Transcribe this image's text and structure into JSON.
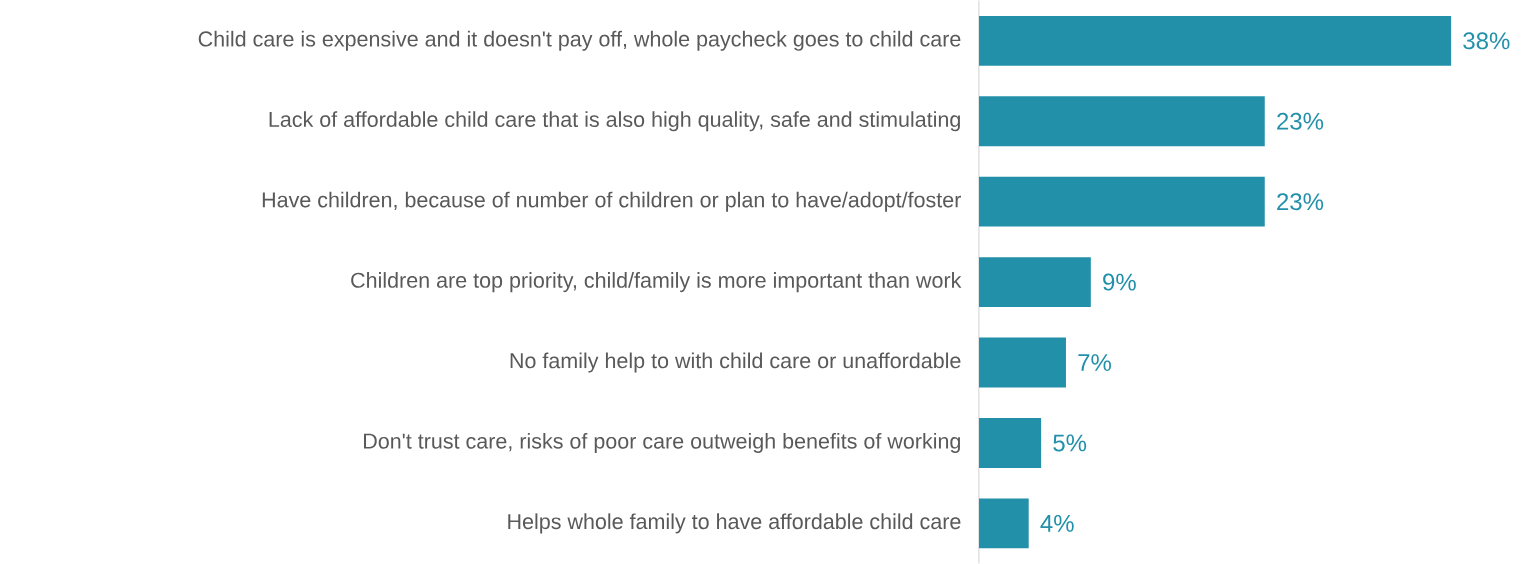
{
  "chart_data": {
    "type": "bar",
    "orientation": "horizontal",
    "categories": [
      "Child care is expensive and it doesn't pay off, whole paycheck goes to child care",
      "Lack of affordable child care that is also high quality, safe and stimulating",
      "Have children, because of number of children or plan to have/adopt/foster",
      "Children are top priority, child/family is more important than work",
      "No family help to with child care or unaffordable",
      "Don't trust care, risks of poor care outweigh benefits of working",
      "Helps whole family to have affordable child care"
    ],
    "values": [
      38,
      23,
      23,
      9,
      7,
      5,
      4
    ],
    "value_labels": [
      "38%",
      "23%",
      "23%",
      "9%",
      "7%",
      "5%",
      "4%"
    ],
    "color": "#2390aa"
  }
}
